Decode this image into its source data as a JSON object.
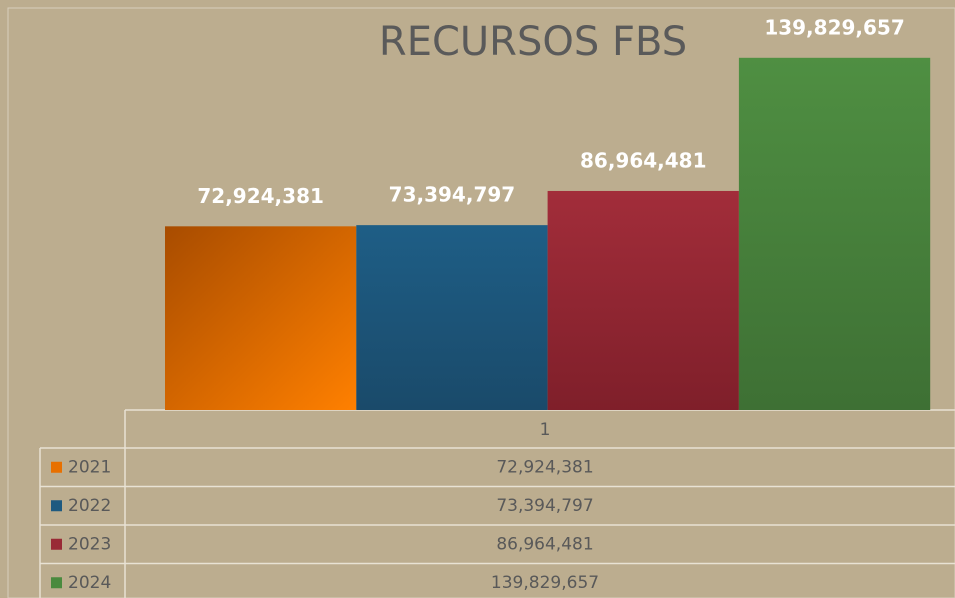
{
  "chart_data": {
    "type": "bar",
    "title": "RECURSOS FBS",
    "categories": [
      "1"
    ],
    "series": [
      {
        "name": "2021",
        "color": "#e87000",
        "values": [
          72924381
        ],
        "value_labels": [
          "72,924,381"
        ]
      },
      {
        "name": "2022",
        "color": "#1e5a80",
        "values": [
          73394797
        ],
        "value_labels": [
          "73,394,797"
        ]
      },
      {
        "name": "2023",
        "color": "#992a36",
        "values": [
          86964481
        ],
        "value_labels": [
          "86,964,481"
        ]
      },
      {
        "name": "2024",
        "color": "#4a8a3e",
        "values": [
          139829657
        ],
        "value_labels": [
          "139,829,657"
        ]
      }
    ],
    "ylim": [
      0,
      160000000
    ]
  }
}
